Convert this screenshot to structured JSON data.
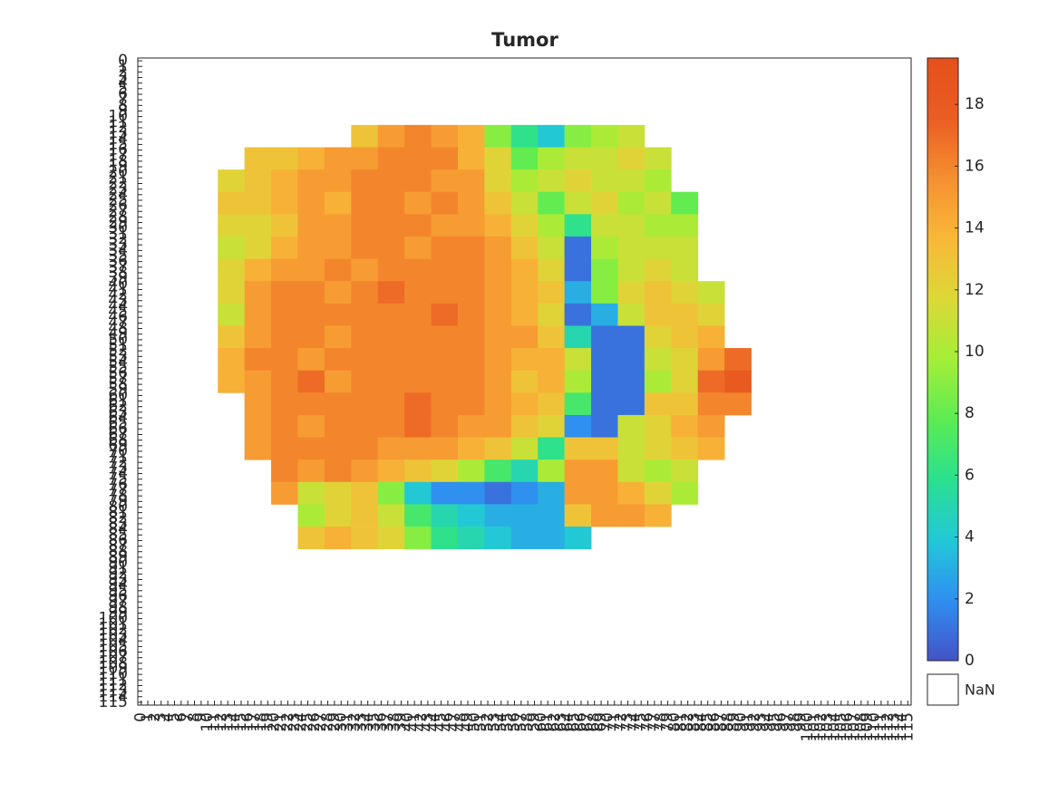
{
  "chart_data": {
    "type": "heatmap",
    "title": "Tumor",
    "xbins": [
      11.5,
      15.5,
      19.5,
      23.5,
      27.5,
      31.5,
      35.5,
      39.5,
      43.5,
      47.5,
      51.5,
      55.5,
      59.5,
      63.5,
      67.5,
      71.5,
      75.5,
      79.5,
      83.5,
      87.5,
      91.5
    ],
    "ybins": [
      11.5,
      15.5,
      19.5,
      23.5,
      27.5,
      31.5,
      35.5,
      39.5,
      43.5,
      47.5,
      51.5,
      55.5,
      59.5,
      63.5,
      67.5,
      71.5,
      75.5,
      79.5,
      83.5,
      87.5
    ],
    "values": [
      [
        null,
        null,
        null,
        null,
        null,
        13,
        15,
        16,
        15,
        14,
        9,
        6,
        4,
        9,
        10,
        11,
        null,
        null,
        null,
        null
      ],
      [
        null,
        13,
        13,
        14,
        15,
        15,
        16,
        16,
        16,
        14,
        12,
        8,
        10,
        11,
        11,
        12,
        11,
        null,
        null,
        null
      ],
      [
        12,
        13,
        14,
        15,
        15,
        16,
        16,
        16,
        15,
        15,
        12,
        10,
        11,
        12,
        11,
        11,
        10,
        null,
        null,
        null
      ],
      [
        13,
        13,
        14,
        15,
        14,
        16,
        16,
        15,
        16,
        15,
        13,
        11,
        8,
        11,
        12,
        10,
        11,
        8,
        null,
        null
      ],
      [
        12,
        12,
        13,
        15,
        15,
        16,
        16,
        16,
        15,
        15,
        14,
        12,
        10,
        6,
        11,
        11,
        10,
        10,
        null,
        null
      ],
      [
        11,
        12,
        14,
        15,
        15,
        16,
        16,
        15,
        16,
        16,
        15,
        13,
        11,
        1,
        10,
        11,
        11,
        11,
        null,
        null
      ],
      [
        12,
        14,
        15,
        15,
        16,
        15,
        16,
        16,
        16,
        16,
        15,
        14,
        12,
        1,
        9,
        11,
        12,
        11,
        null,
        null
      ],
      [
        12,
        15,
        16,
        16,
        15,
        16,
        17,
        16,
        16,
        16,
        15,
        14,
        13,
        3,
        9,
        12,
        13,
        12,
        11,
        null
      ],
      [
        11,
        15,
        16,
        16,
        16,
        16,
        16,
        16,
        17,
        16,
        15,
        14,
        12,
        1,
        3,
        11,
        13,
        13,
        12,
        null
      ],
      [
        13,
        15,
        16,
        16,
        15,
        16,
        16,
        16,
        16,
        16,
        15,
        15,
        13,
        5,
        1,
        1,
        12,
        13,
        14,
        null
      ],
      [
        14,
        16,
        16,
        15,
        16,
        16,
        16,
        16,
        16,
        16,
        15,
        14,
        14,
        11,
        1,
        1,
        11,
        12,
        15,
        17
      ],
      [
        14,
        15,
        16,
        17,
        15,
        16,
        16,
        16,
        16,
        16,
        15,
        13,
        14,
        10,
        1,
        1,
        10,
        12,
        17,
        18
      ],
      [
        null,
        15,
        16,
        16,
        16,
        16,
        16,
        17,
        16,
        16,
        15,
        14,
        13,
        7,
        1,
        1,
        13,
        13,
        16,
        16
      ],
      [
        null,
        15,
        16,
        15,
        16,
        16,
        16,
        17,
        16,
        15,
        15,
        13,
        12,
        2,
        1,
        11,
        12,
        14,
        15,
        null
      ],
      [
        null,
        15,
        16,
        16,
        16,
        16,
        15,
        15,
        15,
        14,
        13,
        11,
        6,
        13,
        13,
        11,
        12,
        13,
        14,
        null
      ],
      [
        null,
        null,
        16,
        15,
        16,
        15,
        14,
        13,
        12,
        10,
        7,
        5,
        10,
        15,
        15,
        11,
        10,
        11,
        null,
        null
      ],
      [
        null,
        null,
        15,
        11,
        12,
        13,
        9,
        4,
        2,
        2,
        1,
        2,
        3,
        15,
        15,
        14,
        12,
        10,
        null,
        null
      ],
      [
        null,
        null,
        null,
        10,
        12,
        13,
        11,
        7,
        5,
        4,
        3,
        3,
        3,
        13,
        15,
        15,
        14,
        null,
        null,
        null
      ],
      [
        null,
        null,
        null,
        13,
        14,
        13,
        12,
        9,
        6,
        5,
        4,
        3,
        3,
        4,
        null,
        null,
        null,
        null,
        null,
        null
      ]
    ],
    "xlim": [
      -0.5,
      115.5
    ],
    "ylim": [
      -0.5,
      115.5
    ],
    "xticks": [
      0,
      1,
      2,
      3,
      4,
      5,
      6,
      7,
      8,
      9,
      10,
      11,
      12,
      13,
      14,
      15,
      16,
      17,
      18,
      19,
      20,
      21,
      22,
      23,
      24,
      25,
      26,
      27,
      28,
      29,
      30,
      31,
      32,
      33,
      34,
      35,
      36,
      37,
      38,
      39,
      40,
      41,
      42,
      43,
      44,
      45,
      46,
      47,
      48,
      49,
      50,
      51,
      52,
      53,
      54,
      55,
      56,
      57,
      58,
      59,
      60,
      61,
      62,
      63,
      64,
      65,
      66,
      67,
      68,
      69,
      70,
      71,
      72,
      73,
      74,
      75,
      76,
      77,
      78,
      79,
      80,
      81,
      82,
      83,
      84,
      85,
      86,
      87,
      88,
      89,
      90,
      91,
      92,
      93,
      94,
      95,
      96,
      97,
      98,
      99,
      100,
      101,
      102,
      103,
      104,
      105,
      106,
      107,
      108,
      109,
      110,
      111,
      112,
      113,
      114,
      115
    ],
    "yticks": [
      0,
      1,
      2,
      3,
      4,
      5,
      6,
      7,
      8,
      9,
      10,
      11,
      12,
      13,
      14,
      15,
      16,
      17,
      18,
      19,
      20,
      21,
      22,
      23,
      24,
      25,
      26,
      27,
      28,
      29,
      30,
      31,
      32,
      33,
      34,
      35,
      36,
      37,
      38,
      39,
      40,
      41,
      42,
      43,
      44,
      45,
      46,
      47,
      48,
      49,
      50,
      51,
      52,
      53,
      54,
      55,
      56,
      57,
      58,
      59,
      60,
      61,
      62,
      63,
      64,
      65,
      66,
      67,
      68,
      69,
      70,
      71,
      72,
      73,
      74,
      75,
      76,
      77,
      78,
      79,
      80,
      81,
      82,
      83,
      84,
      85,
      86,
      87,
      88,
      89,
      90,
      91,
      92,
      93,
      94,
      95,
      96,
      97,
      98,
      99,
      100,
      101,
      102,
      103,
      104,
      105,
      106,
      107,
      108,
      109,
      110,
      111,
      112,
      113,
      114,
      115
    ],
    "y_reversed": true,
    "colormap": [
      "#4453c6",
      "#2f8ff0",
      "#22c8d8",
      "#2ae08f",
      "#5cec52",
      "#a4ee38",
      "#dcd838",
      "#f8b838",
      "#f59030",
      "#ea5d22",
      "#e5501b"
    ],
    "clim": [
      0,
      19.5
    ],
    "cticks": [
      0,
      2,
      4,
      6,
      8,
      10,
      12,
      14,
      16,
      18
    ],
    "nan_label": "NaN"
  }
}
